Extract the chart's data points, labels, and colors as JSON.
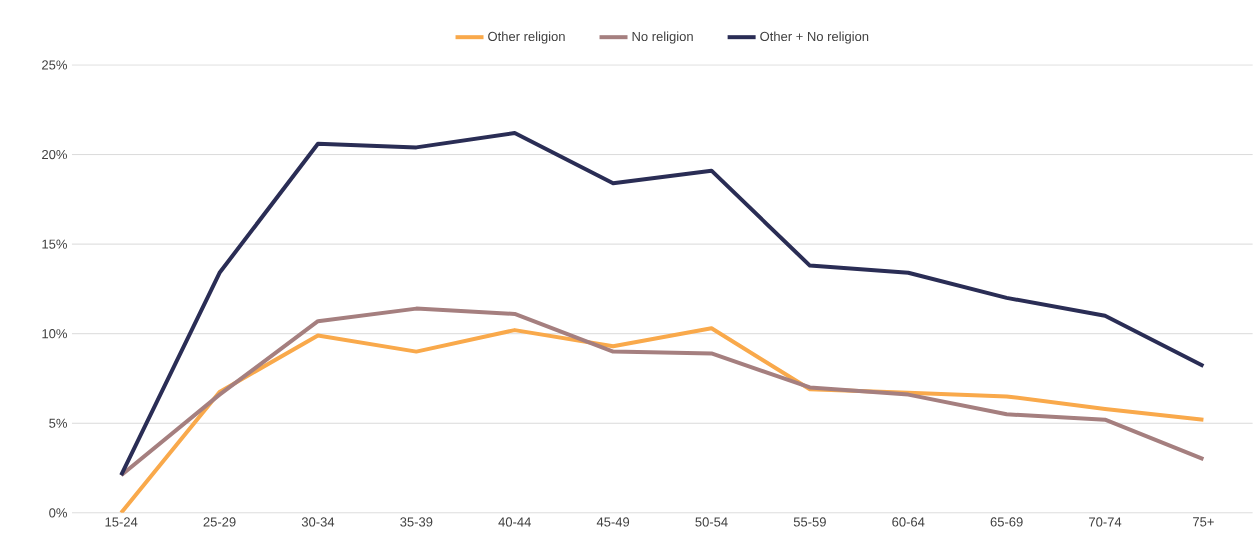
{
  "chart_data": {
    "type": "line",
    "categories": [
      "15-24",
      "25-29",
      "30-34",
      "35-39",
      "40-44",
      "45-49",
      "50-54",
      "55-59",
      "60-64",
      "65-69",
      "70-74",
      "75+"
    ],
    "series": [
      {
        "name": "Other religion",
        "color": "#f9a94b",
        "values": [
          0,
          6.75,
          9.9,
          9.0,
          10.2,
          9.3,
          10.3,
          6.9,
          6.7,
          6.5,
          5.8,
          5.2
        ]
      },
      {
        "name": "No religion",
        "color": "#a57f7f",
        "values": [
          2.1,
          6.6,
          10.7,
          11.4,
          11.1,
          9.0,
          8.9,
          7.0,
          6.6,
          5.5,
          5.2,
          3.0
        ]
      },
      {
        "name": "Other + No religion",
        "color": "#2a2d55",
        "values": [
          2.1,
          13.4,
          20.6,
          20.4,
          21.2,
          18.4,
          19.1,
          13.8,
          13.4,
          12.0,
          11.0,
          8.2
        ]
      }
    ],
    "ylim": [
      0,
      25
    ],
    "yticks": [
      {
        "value": 0,
        "label": "0%"
      },
      {
        "value": 5,
        "label": "5%"
      },
      {
        "value": 10,
        "label": "10%"
      },
      {
        "value": 15,
        "label": "15%"
      },
      {
        "value": 20,
        "label": "20%"
      },
      {
        "value": 25,
        "label": "25%"
      }
    ],
    "grid": "y",
    "legend": "top",
    "marker": "none",
    "line_style": "solid"
  }
}
